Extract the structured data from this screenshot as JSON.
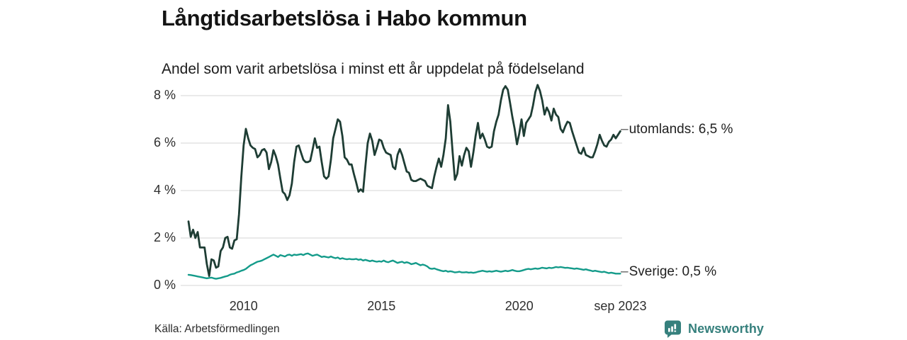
{
  "header": {
    "title": "Långtidsarbetslösa i Habo kommun",
    "subtitle": "Andel som varit arbetslösa i minst ett år uppdelat på födelseland"
  },
  "ui": {
    "dash": "–"
  },
  "footer": {
    "source": "Källa: Arbetsförmedlingen",
    "brand": "Newsworthy",
    "brand_color": "#36807d"
  },
  "chart_data": {
    "type": "line",
    "title": "Långtidsarbetslösa i Habo kommun",
    "subtitle": "Andel som varit arbetslösa i minst ett år uppdelat på födelseland",
    "y_unit": "%",
    "ylim": [
      0,
      8.5
    ],
    "grid": "horizontal-only",
    "grid_color": "#dedede",
    "x_start_year": 2008.0,
    "x_interval": "monthly",
    "x_end_label": "sep 2023",
    "y_ticks": [
      {
        "value": 8,
        "label": "8 %"
      },
      {
        "value": 6,
        "label": "6 %"
      },
      {
        "value": 4,
        "label": "4 %"
      },
      {
        "value": 2,
        "label": "2 %"
      },
      {
        "value": 0,
        "label": "0 %"
      }
    ],
    "x_ticks": [
      {
        "t": 2010.0,
        "label": "2010"
      },
      {
        "t": 2015.0,
        "label": "2015"
      },
      {
        "t": 2020.0,
        "label": "2020"
      },
      {
        "t": 2023.667,
        "label": "sep 2023"
      }
    ],
    "series": [
      {
        "name": "utomlands",
        "end_label": "utomlands: 6,5 %",
        "end_value": "6,5 %",
        "color": "#1e3d34",
        "stroke_width": 2.8,
        "values": [
          2.7,
          2.05,
          2.35,
          2.0,
          2.25,
          1.6,
          1.6,
          1.6,
          0.9,
          0.4,
          1.1,
          1.05,
          0.75,
          0.8,
          1.45,
          1.6,
          2.0,
          2.05,
          1.6,
          1.55,
          1.9,
          1.95,
          3.0,
          4.6,
          5.9,
          6.6,
          6.2,
          5.9,
          5.8,
          5.75,
          5.4,
          5.5,
          5.7,
          5.75,
          5.6,
          4.9,
          5.2,
          5.7,
          5.45,
          5.1,
          4.5,
          3.95,
          3.85,
          3.6,
          3.8,
          4.3,
          5.2,
          5.85,
          5.9,
          5.6,
          5.3,
          5.2,
          5.2,
          5.25,
          5.7,
          6.2,
          5.8,
          5.85,
          5.2,
          4.6,
          4.5,
          4.6,
          5.3,
          6.2,
          6.6,
          7.0,
          6.9,
          6.3,
          5.4,
          5.3,
          5.1,
          5.1,
          4.7,
          4.35,
          3.95,
          4.05,
          3.95,
          5.0,
          6.0,
          6.4,
          6.1,
          5.5,
          5.8,
          6.15,
          6.1,
          5.8,
          5.6,
          5.55,
          5.5,
          5.0,
          4.9,
          5.5,
          5.75,
          5.5,
          5.15,
          4.8,
          4.75,
          4.45,
          4.4,
          4.4,
          4.45,
          4.5,
          4.45,
          4.4,
          4.2,
          4.15,
          4.1,
          4.6,
          5.0,
          5.35,
          5.0,
          5.5,
          6.2,
          7.6,
          6.9,
          5.6,
          4.45,
          4.7,
          5.45,
          5.05,
          5.5,
          5.8,
          5.65,
          5.0,
          5.6,
          6.3,
          6.85,
          6.2,
          6.4,
          6.15,
          5.85,
          5.8,
          5.85,
          6.5,
          6.9,
          7.2,
          7.8,
          8.25,
          8.4,
          8.25,
          7.7,
          7.1,
          6.6,
          5.95,
          6.4,
          7.0,
          6.3,
          6.85,
          7.0,
          7.15,
          7.6,
          8.15,
          8.45,
          8.2,
          7.8,
          7.2,
          7.5,
          7.3,
          6.95,
          7.45,
          7.2,
          7.1,
          6.6,
          6.45,
          6.7,
          6.9,
          6.85,
          6.5,
          6.2,
          5.9,
          5.6,
          5.55,
          5.8,
          5.5,
          5.45,
          5.4,
          5.4,
          5.65,
          5.95,
          6.35,
          6.1,
          5.9,
          5.85,
          6.05,
          6.15,
          6.35,
          6.2,
          6.35,
          6.5
        ]
      },
      {
        "name": "Sverige",
        "end_label": "Sverige: 0,5 %",
        "end_value": "0,5 %",
        "color": "#149b8a",
        "stroke_width": 2.4,
        "values": [
          0.45,
          0.44,
          0.42,
          0.4,
          0.38,
          0.36,
          0.34,
          0.32,
          0.3,
          0.32,
          0.33,
          0.3,
          0.28,
          0.3,
          0.32,
          0.35,
          0.38,
          0.4,
          0.45,
          0.48,
          0.5,
          0.55,
          0.58,
          0.62,
          0.65,
          0.7,
          0.78,
          0.85,
          0.9,
          0.95,
          1.0,
          1.02,
          1.05,
          1.1,
          1.15,
          1.2,
          1.25,
          1.3,
          1.25,
          1.2,
          1.28,
          1.25,
          1.22,
          1.28,
          1.3,
          1.25,
          1.3,
          1.28,
          1.3,
          1.32,
          1.28,
          1.33,
          1.35,
          1.3,
          1.25,
          1.28,
          1.3,
          1.25,
          1.2,
          1.22,
          1.2,
          1.18,
          1.22,
          1.18,
          1.15,
          1.18,
          1.12,
          1.15,
          1.12,
          1.1,
          1.12,
          1.1,
          1.1,
          1.12,
          1.08,
          1.1,
          1.05,
          1.08,
          1.05,
          1.02,
          1.05,
          1.02,
          1.0,
          1.02,
          1.0,
          1.05,
          1.0,
          0.98,
          1.02,
          1.05,
          1.0,
          0.95,
          0.98,
          1.0,
          0.95,
          0.98,
          0.95,
          0.9,
          0.92,
          0.95,
          0.9,
          0.85,
          0.88,
          0.85,
          0.8,
          0.72,
          0.7,
          0.72,
          0.68,
          0.65,
          0.62,
          0.6,
          0.62,
          0.58,
          0.6,
          0.58,
          0.55,
          0.56,
          0.58,
          0.55,
          0.55,
          0.56,
          0.54,
          0.55,
          0.53,
          0.55,
          0.58,
          0.6,
          0.62,
          0.6,
          0.58,
          0.6,
          0.58,
          0.6,
          0.62,
          0.6,
          0.58,
          0.6,
          0.62,
          0.6,
          0.62,
          0.65,
          0.62,
          0.6,
          0.6,
          0.62,
          0.65,
          0.68,
          0.7,
          0.68,
          0.7,
          0.72,
          0.7,
          0.72,
          0.75,
          0.73,
          0.72,
          0.75,
          0.73,
          0.75,
          0.78,
          0.76,
          0.78,
          0.76,
          0.74,
          0.75,
          0.73,
          0.72,
          0.7,
          0.72,
          0.7,
          0.68,
          0.66,
          0.68,
          0.65,
          0.63,
          0.6,
          0.62,
          0.6,
          0.58,
          0.56,
          0.58,
          0.55,
          0.52,
          0.54,
          0.52,
          0.5,
          0.5,
          0.5
        ]
      }
    ]
  }
}
